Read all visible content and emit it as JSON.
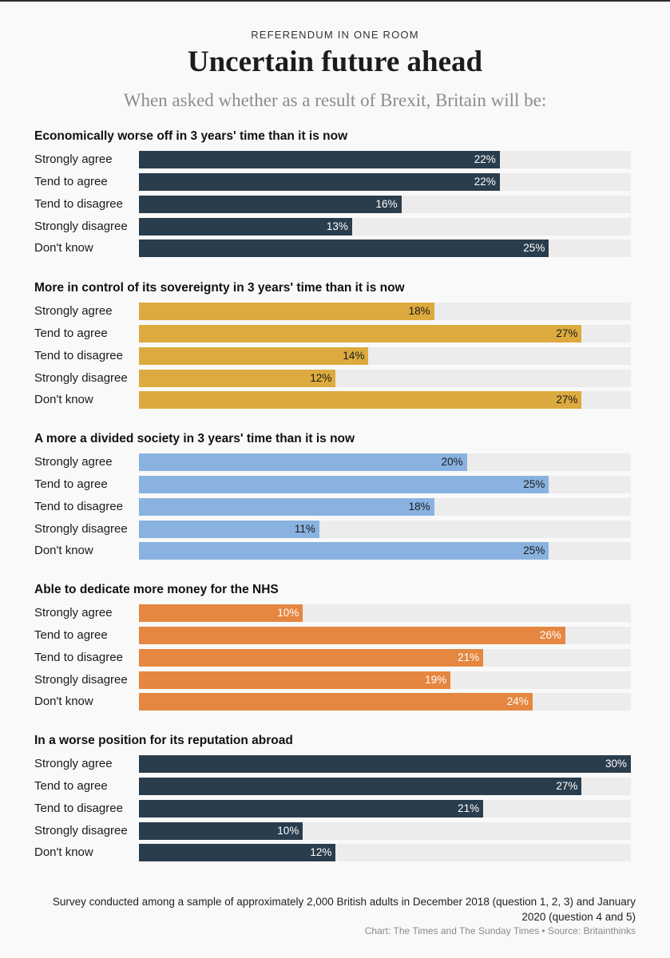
{
  "header": {
    "kicker": "REFERENDUM IN ONE ROOM",
    "title": "Uncertain future ahead",
    "subtitle": "When asked whether as a result of Brexit, Britain will be:"
  },
  "chart_data": {
    "type": "bar",
    "orientation": "horizontal",
    "xlim": [
      0,
      30
    ],
    "value_suffix": "%",
    "categories": [
      "Strongly agree",
      "Tend to agree",
      "Tend to disagree",
      "Strongly disagree",
      "Don't know"
    ],
    "panels": [
      {
        "title": "Economically worse off in 3 years' time than it is now",
        "color": "#2a3d4d",
        "label_color": "#ffffff",
        "values": [
          22,
          22,
          16,
          13,
          25
        ]
      },
      {
        "title": "More in control of its sovereignty in 3 years' time than it is now",
        "color": "#dcaa3e",
        "label_color": "#1a1a1a",
        "values": [
          18,
          27,
          14,
          12,
          27
        ]
      },
      {
        "title": "A more a divided society in 3 years' time than it is now",
        "color": "#89b2e0",
        "label_color": "#1a1a1a",
        "values": [
          20,
          25,
          18,
          11,
          25
        ]
      },
      {
        "title": "Able to dedicate more money for the NHS",
        "color": "#e58740",
        "label_color": "#ffffff",
        "values": [
          10,
          26,
          21,
          19,
          24
        ]
      },
      {
        "title": "In a worse position for its reputation abroad",
        "color": "#2a3d4d",
        "label_color": "#ffffff",
        "values": [
          30,
          27,
          21,
          10,
          12
        ]
      }
    ]
  },
  "footer": {
    "note": "Survey conducted among a sample of approximately 2,000 British adults in December 2018 (question 1, 2, 3) and January 2020 (question 4 and 5)",
    "credit": "Chart: The Times and The Sunday Times • Source: Britainthinks"
  }
}
